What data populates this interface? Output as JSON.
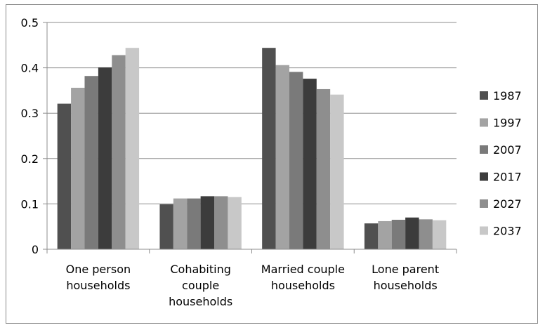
{
  "chart_data": {
    "type": "bar",
    "title": "",
    "xlabel": "",
    "ylabel": "",
    "ylim": [
      0,
      0.5
    ],
    "yticks": [
      "0",
      "0.1",
      "0.2",
      "0.3",
      "0.4",
      "0.5"
    ],
    "grid": "horizontal",
    "legend_position": "right",
    "categories": [
      [
        "One person",
        "households"
      ],
      [
        "Cohabiting",
        "couple",
        "households"
      ],
      [
        "Married couple",
        "households"
      ],
      [
        "Lone parent",
        "households"
      ]
    ],
    "series": [
      {
        "name": "1987",
        "color": "#505050",
        "values": [
          0.321,
          0.099,
          0.444,
          0.057
        ]
      },
      {
        "name": "1997",
        "color": "#a3a3a3",
        "values": [
          0.356,
          0.112,
          0.406,
          0.062
        ]
      },
      {
        "name": "2007",
        "color": "#7a7a7a",
        "values": [
          0.382,
          0.112,
          0.391,
          0.065
        ]
      },
      {
        "name": "2017",
        "color": "#3c3c3c",
        "values": [
          0.401,
          0.117,
          0.376,
          0.07
        ]
      },
      {
        "name": "2027",
        "color": "#8e8e8e",
        "values": [
          0.428,
          0.117,
          0.353,
          0.066
        ]
      },
      {
        "name": "2037",
        "color": "#c8c8c8",
        "values": [
          0.444,
          0.115,
          0.341,
          0.064
        ]
      }
    ]
  }
}
